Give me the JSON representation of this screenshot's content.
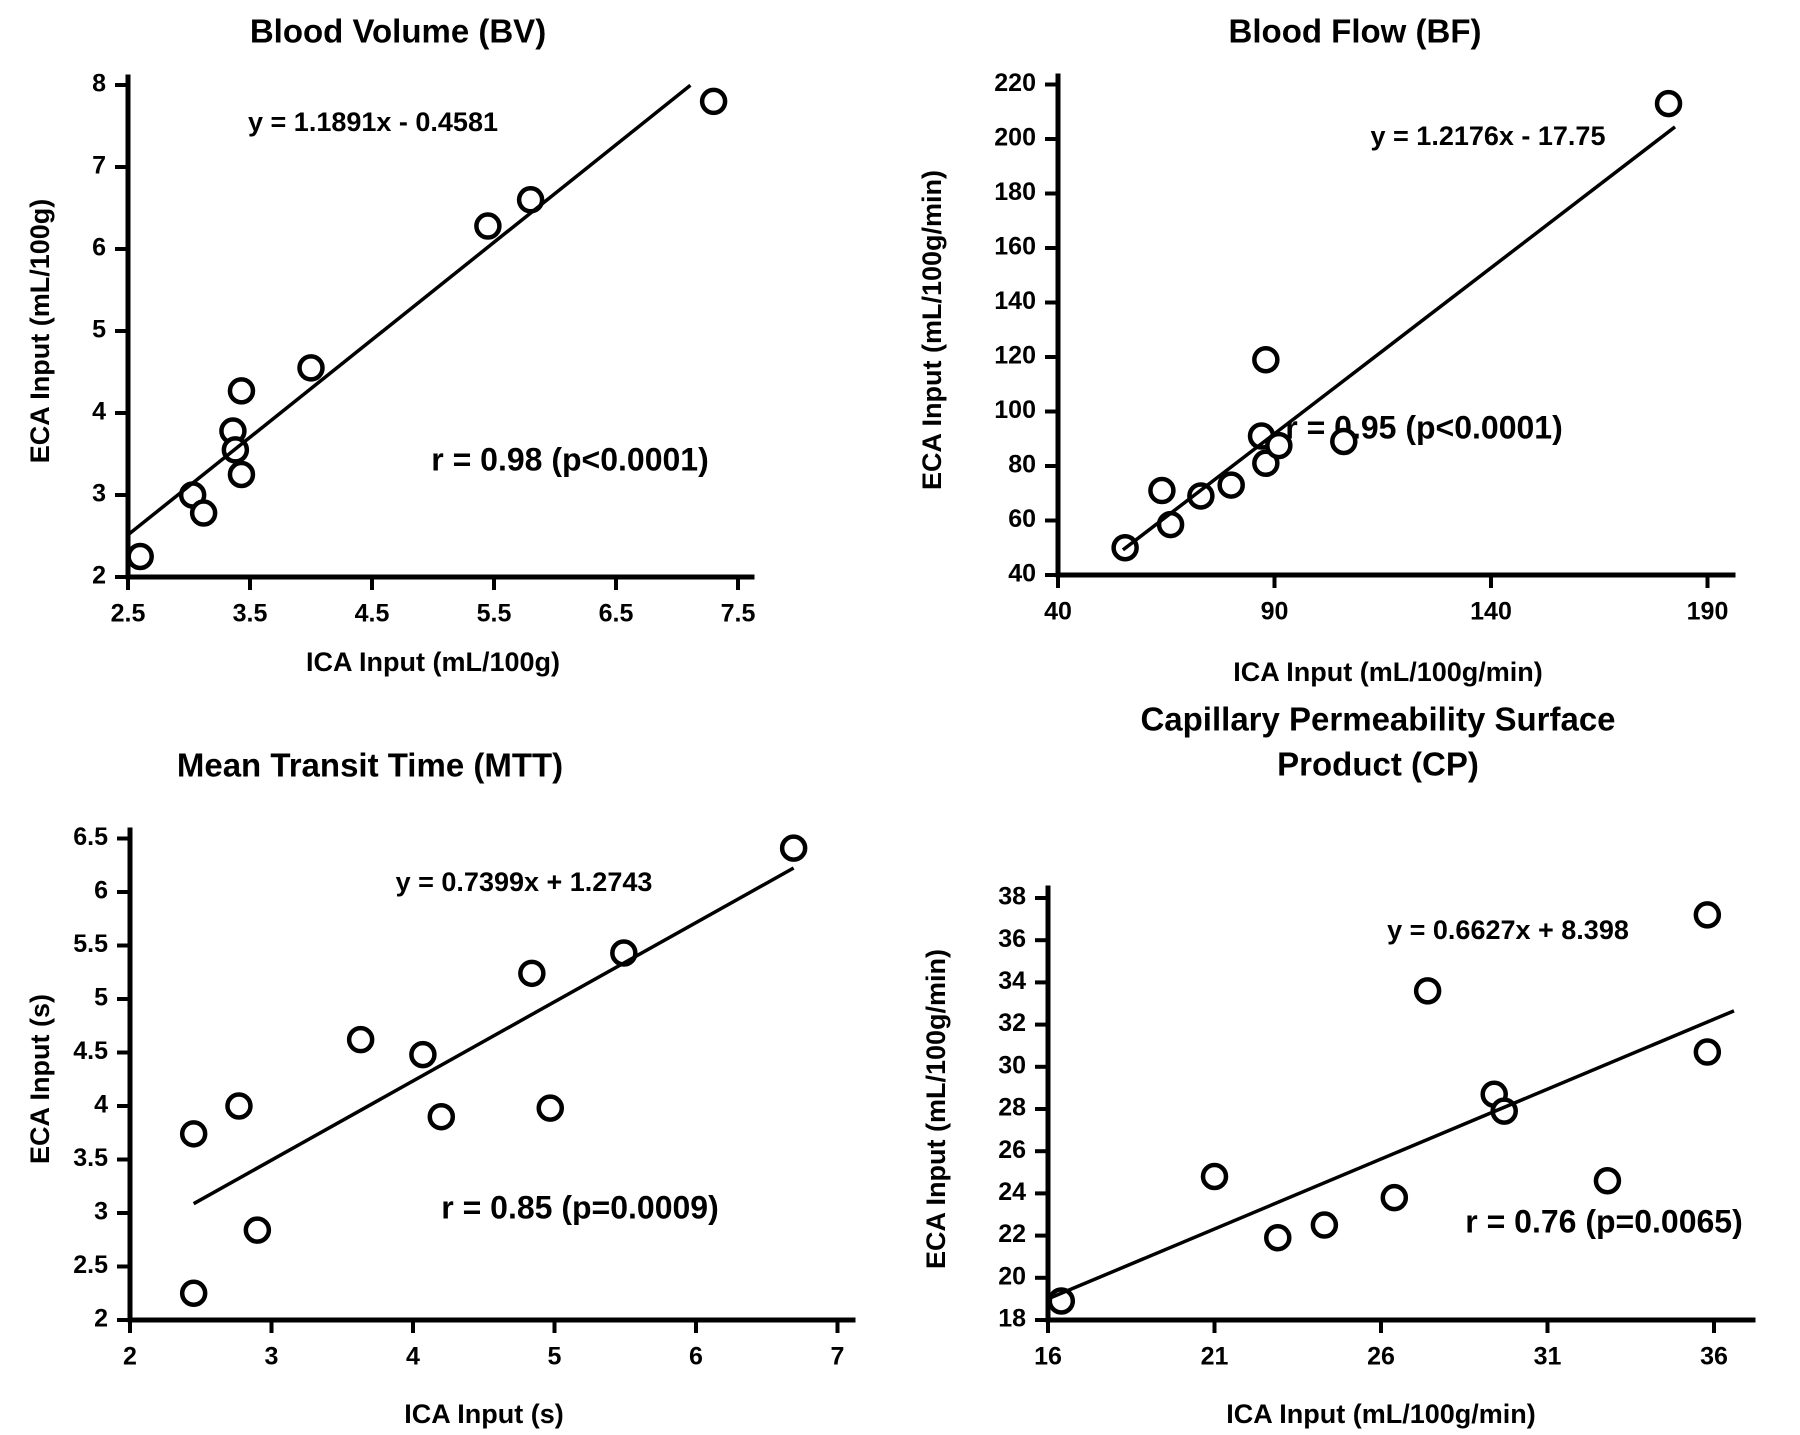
{
  "figure": {
    "background": "#ffffff",
    "ink_color": "#000000",
    "marker": "open-circle"
  },
  "chart_data": [
    {
      "type": "scatter",
      "title_lines": [
        "Blood Volume (BV)"
      ],
      "equation_label": "y = 1.1891x - 0.4581",
      "stats_label": "r = 0.98 (p<0.0001)",
      "xlabel": "ICA Input (mL/100g)",
      "ylabel": "ECA Input (mL/100g)",
      "xlim": [
        2.5,
        7.5
      ],
      "ylim": [
        2,
        8
      ],
      "xticks": [
        "2.5",
        "3.5",
        "4.5",
        "5.5",
        "6.5",
        "7.5"
      ],
      "yticks": [
        "2",
        "3",
        "4",
        "5",
        "6",
        "7",
        "8"
      ],
      "grid": false,
      "legend": "none",
      "points": [
        [
          2.6,
          2.25
        ],
        [
          3.03,
          3.0
        ],
        [
          3.12,
          2.78
        ],
        [
          3.36,
          3.78
        ],
        [
          3.38,
          3.55
        ],
        [
          3.43,
          3.25
        ],
        [
          3.43,
          4.27
        ],
        [
          4.0,
          4.55
        ],
        [
          5.45,
          6.28
        ],
        [
          5.8,
          6.6
        ],
        [
          7.3,
          7.8
        ]
      ],
      "trendline": {
        "slope": 1.1891,
        "intercept": -0.4581,
        "x_start": 2.5,
        "x_end": 7.11
      }
    },
    {
      "type": "scatter",
      "title_lines": [
        "Blood Flow (BF)"
      ],
      "equation_label": "y = 1.2176x - 17.75",
      "stats_label": "r = 0.95 (p<0.0001)",
      "xlabel": "ICA Input (mL/100g/min)",
      "ylabel": "ECA Input (mL/100g/min)",
      "xlim": [
        40,
        190
      ],
      "ylim": [
        40,
        220
      ],
      "xticks": [
        "40",
        "90",
        "140",
        "190"
      ],
      "yticks": [
        "40",
        "60",
        "80",
        "100",
        "120",
        "140",
        "160",
        "180",
        "200",
        "220"
      ],
      "grid": false,
      "legend": "none",
      "points": [
        [
          55.5,
          50
        ],
        [
          66,
          58.5
        ],
        [
          64,
          71
        ],
        [
          73,
          69
        ],
        [
          80,
          73
        ],
        [
          88,
          81
        ],
        [
          87,
          91
        ],
        [
          91,
          87.5
        ],
        [
          88,
          119
        ],
        [
          106,
          89
        ],
        [
          181,
          213
        ]
      ],
      "trendline": {
        "slope": 1.2176,
        "intercept": -17.75,
        "x_start": 55,
        "x_end": 182.5
      }
    },
    {
      "type": "scatter",
      "title_lines": [
        "Mean Transit Time (MTT)"
      ],
      "equation_label": "y = 0.7399x + 1.2743",
      "stats_label": "r = 0.85 (p=0.0009)",
      "xlabel": "ICA Input (s)",
      "ylabel": "ECA Input (s)",
      "xlim": [
        2,
        7
      ],
      "ylim": [
        2,
        6.5
      ],
      "xticks": [
        "2",
        "3",
        "4",
        "5",
        "6",
        "7"
      ],
      "yticks": [
        "2",
        "2.5",
        "3",
        "3.5",
        "4",
        "4.5",
        "5",
        "5.5",
        "6",
        "6.5"
      ],
      "grid": false,
      "legend": "none",
      "points": [
        [
          2.45,
          2.25
        ],
        [
          2.45,
          3.74
        ],
        [
          2.77,
          4.0
        ],
        [
          2.9,
          2.84
        ],
        [
          3.63,
          4.62
        ],
        [
          4.07,
          4.48
        ],
        [
          4.2,
          3.9
        ],
        [
          4.84,
          5.24
        ],
        [
          4.97,
          3.98
        ],
        [
          5.49,
          5.43
        ],
        [
          6.69,
          6.41
        ]
      ],
      "trendline": {
        "slope": 0.7399,
        "intercept": 1.2743,
        "x_start": 2.45,
        "x_end": 6.69
      }
    },
    {
      "type": "scatter",
      "title_lines": [
        "Capillary Permeability Surface",
        "Product (CP)"
      ],
      "equation_label": "y = 0.6627x + 8.398",
      "stats_label": "r = 0.76 (p=0.0065)",
      "xlabel": "ICA Input (mL/100g/min)",
      "ylabel": "ECA Input (mL/100g/min)",
      "xlim": [
        16,
        36
      ],
      "ylim": [
        18,
        38
      ],
      "xticks": [
        "16",
        "21",
        "26",
        "31",
        "36"
      ],
      "yticks": [
        "18",
        "20",
        "22",
        "24",
        "26",
        "28",
        "30",
        "32",
        "34",
        "36",
        "38"
      ],
      "grid": false,
      "legend": "none",
      "points": [
        [
          16.4,
          18.9
        ],
        [
          21.0,
          24.8
        ],
        [
          22.9,
          21.9
        ],
        [
          24.3,
          22.5
        ],
        [
          26.4,
          23.8
        ],
        [
          27.4,
          33.6
        ],
        [
          29.4,
          28.7
        ],
        [
          29.7,
          27.9
        ],
        [
          32.8,
          24.6
        ],
        [
          35.8,
          37.2
        ],
        [
          35.8,
          30.7
        ]
      ],
      "trendline": {
        "slope": 0.6627,
        "intercept": 8.398,
        "x_start": 16.05,
        "x_end": 36.6
      }
    }
  ]
}
